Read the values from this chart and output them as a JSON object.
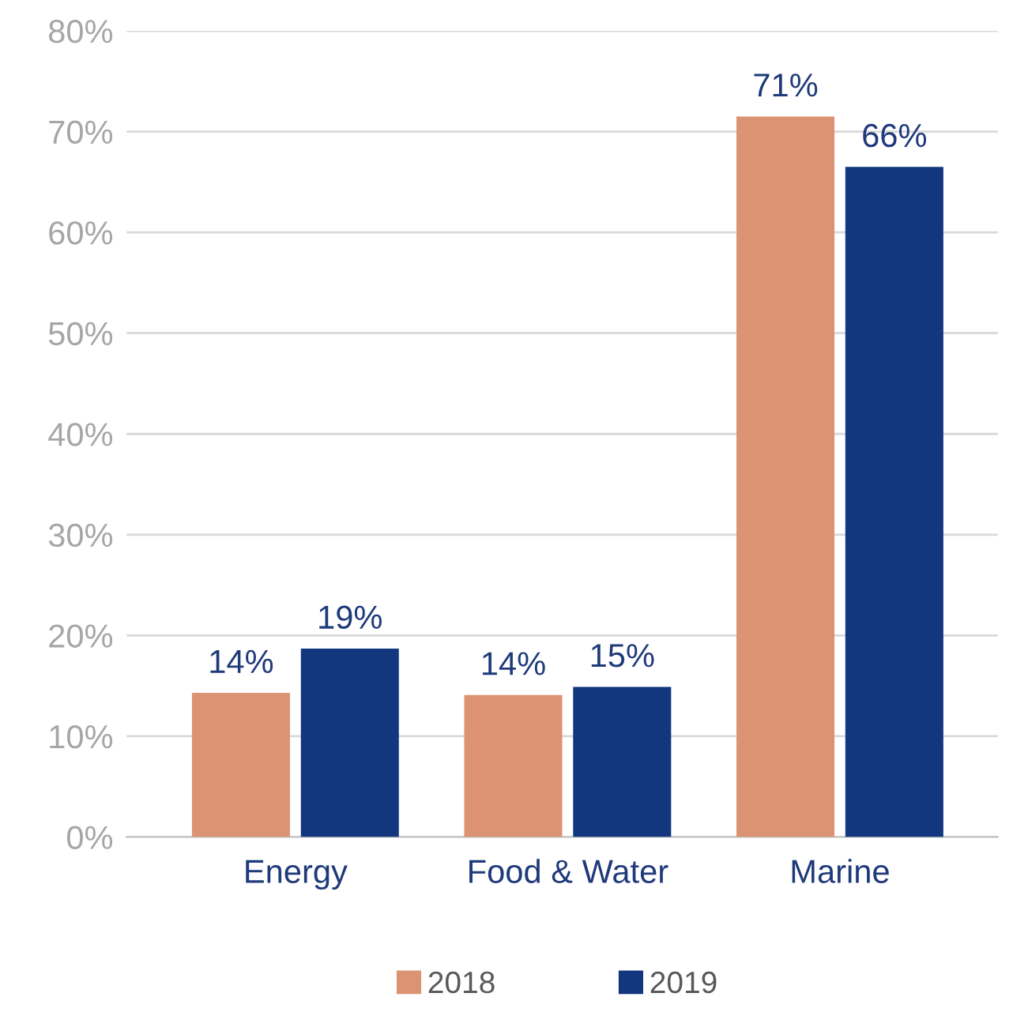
{
  "chart_data": {
    "type": "bar",
    "categories": [
      "Energy",
      "Food & Water",
      "Marine"
    ],
    "series": [
      {
        "name": "2018",
        "color": "#dc9373",
        "values": [
          14.3,
          14.1,
          71.5
        ],
        "value_labels": [
          "14%",
          "14%",
          "71%"
        ]
      },
      {
        "name": "2019",
        "color": "#12377e",
        "values": [
          18.7,
          14.9,
          66.5
        ],
        "value_labels": [
          "19%",
          "15%",
          "66%"
        ]
      }
    ],
    "ylim": [
      0,
      80
    ],
    "yticks": [
      {
        "value": 0,
        "label": "0%"
      },
      {
        "value": 10,
        "label": "10%"
      },
      {
        "value": 20,
        "label": "20%"
      },
      {
        "value": 30,
        "label": "30%"
      },
      {
        "value": 40,
        "label": "40%"
      },
      {
        "value": 50,
        "label": "50%"
      },
      {
        "value": 60,
        "label": "60%"
      },
      {
        "value": 70,
        "label": "70%"
      },
      {
        "value": 80,
        "label": "80%"
      }
    ],
    "grid": "y",
    "legend": "bottom"
  }
}
